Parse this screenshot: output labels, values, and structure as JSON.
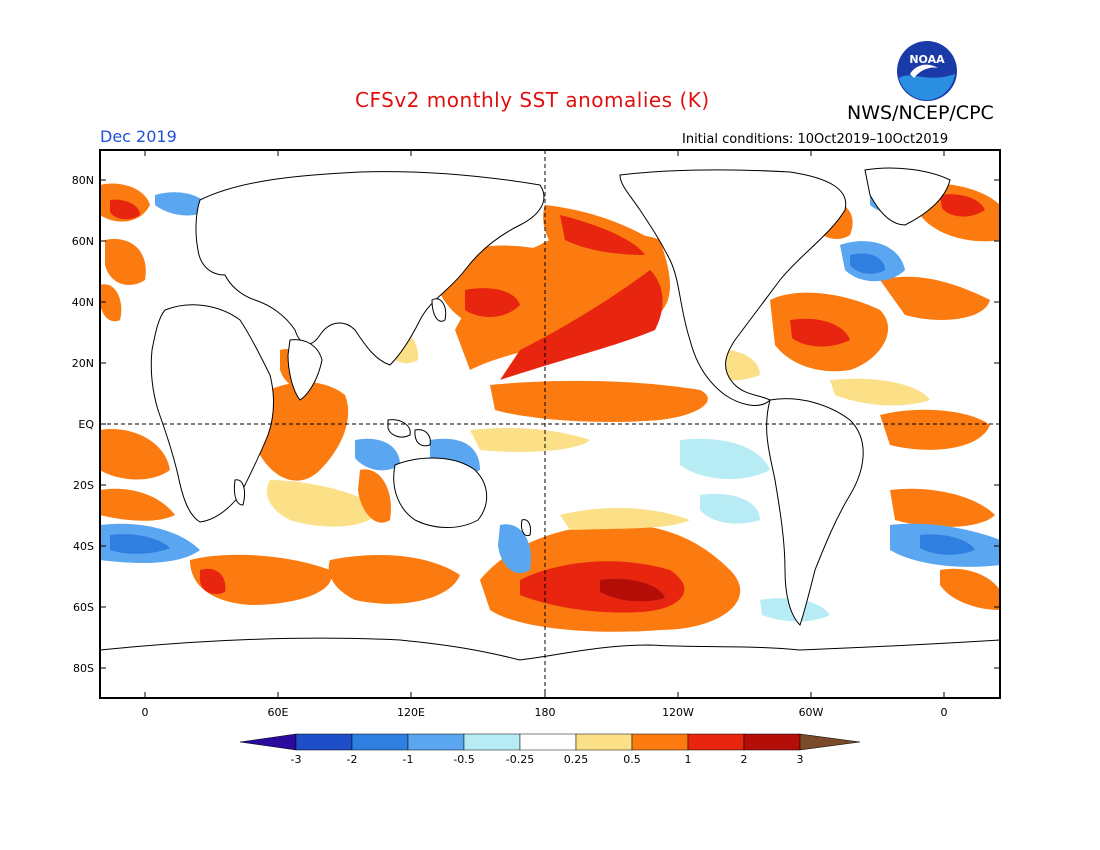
{
  "title": "CFSv2 monthly SST anomalies (K)",
  "period": "Dec 2019",
  "initial_conditions": "Initial conditions: 10Oct2019–10Oct2019",
  "agency": "NWS/NCEP/CPC",
  "logo_text": "NOAA",
  "axes": {
    "lat_labels": [
      "80N",
      "60N",
      "40N",
      "20N",
      "EQ",
      "20S",
      "40S",
      "60S",
      "80S"
    ],
    "lon_labels": [
      "0",
      "60E",
      "120E",
      "180",
      "120W",
      "60W",
      "0"
    ]
  },
  "colorbar": {
    "labels": [
      "-3",
      "-2",
      "-1",
      "-0.5",
      "-0.25",
      "0.25",
      "0.5",
      "1",
      "2",
      "3"
    ],
    "colors": [
      "#2b0a9e",
      "#1f4fc8",
      "#2f7fe0",
      "#5aa6f0",
      "#b8ecf5",
      "#ffffff",
      "#fbe088",
      "#fb7b10",
      "#e8250f",
      "#b40e08",
      "#7a4a2a"
    ]
  },
  "map_colors": {
    "land": "#ffffff",
    "coast": "#000000",
    "pos_05": "#fbe088",
    "pos_1": "#fb7b10",
    "pos_2": "#e8250f",
    "pos_3": "#b40e08",
    "neg_025": "#b8ecf5",
    "neg_05": "#5aa6f0",
    "neg_1": "#2f7fe0",
    "neg_2": "#1f4fc8"
  }
}
